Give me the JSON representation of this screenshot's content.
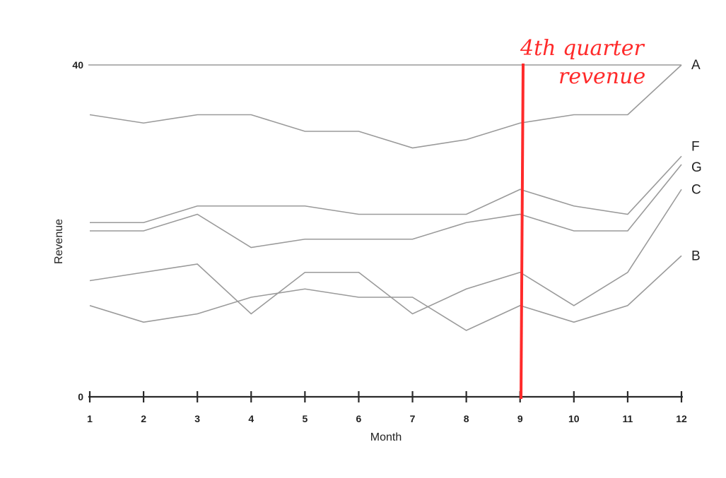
{
  "chart_data": {
    "type": "line",
    "xlabel": "Month",
    "ylabel": "Revenue",
    "x": [
      1,
      2,
      3,
      4,
      5,
      6,
      7,
      8,
      9,
      10,
      11,
      12
    ],
    "xlim": [
      1,
      12
    ],
    "ylim": [
      0,
      40
    ],
    "y_ticks": [
      0,
      40
    ],
    "grid": false,
    "series": [
      {
        "name": "A",
        "values": [
          34,
          33,
          34,
          34,
          32,
          32,
          30,
          31,
          33,
          34,
          34,
          40
        ]
      },
      {
        "name": "F",
        "values": [
          21,
          21,
          23,
          23,
          23,
          22,
          22,
          22,
          25,
          23,
          22,
          29
        ]
      },
      {
        "name": "G",
        "values": [
          20,
          20,
          22,
          18,
          19,
          19,
          19,
          21,
          22,
          20,
          20,
          28
        ]
      },
      {
        "name": "C",
        "values": [
          14,
          15,
          16,
          10,
          15,
          15,
          10,
          13,
          15,
          11,
          15,
          25
        ]
      },
      {
        "name": "B",
        "values": [
          11,
          9,
          10,
          12,
          13,
          12,
          12,
          8,
          11,
          9,
          11,
          17
        ]
      }
    ],
    "reference_line": {
      "y": 40
    },
    "annotation": {
      "text_line1": "4th quarter",
      "text_line2": "revenue",
      "x": 9,
      "color": "#ff2a2a"
    }
  }
}
